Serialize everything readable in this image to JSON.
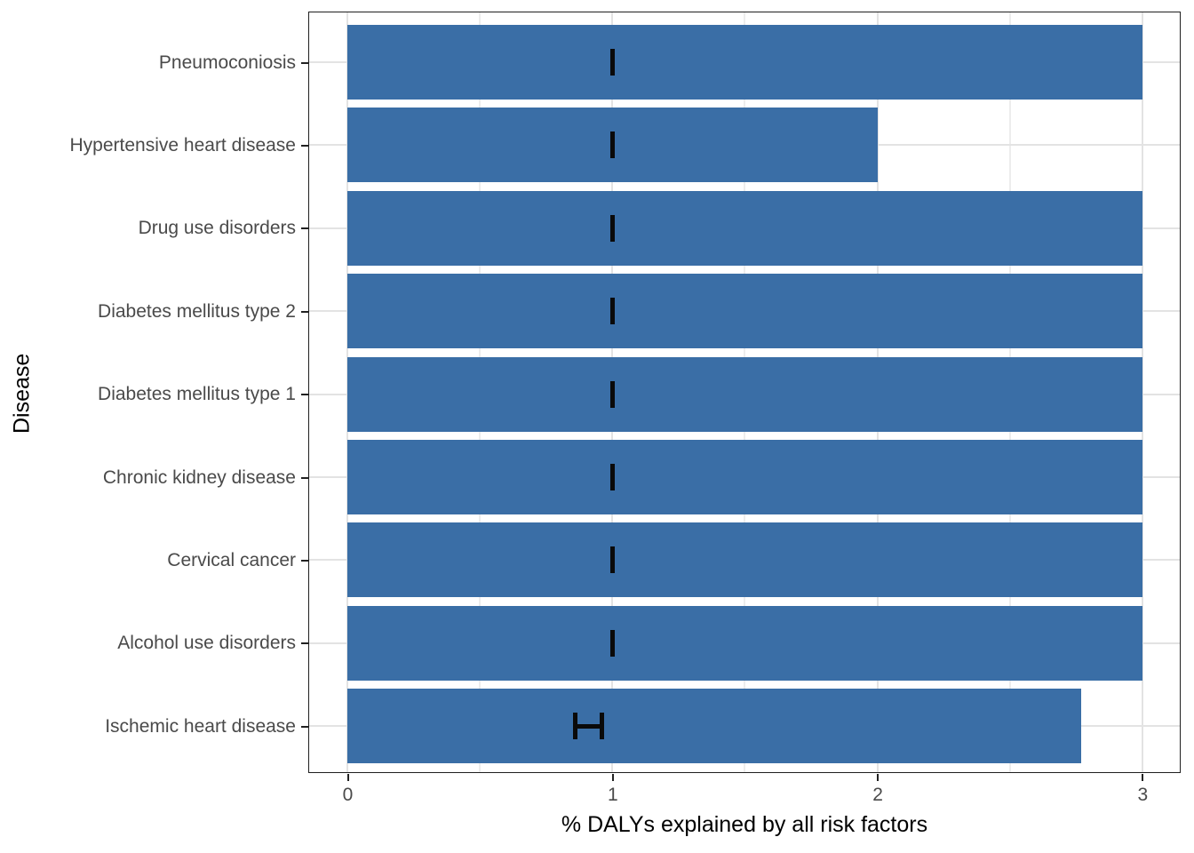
{
  "figure": {
    "x_axis_title": "% DALYs explained by all risk factors",
    "y_axis_title": "Disease"
  },
  "colors": {
    "bar_fill": "#3A6EA6",
    "error_bar": "#0A0A0A",
    "grid_major": "#E3E3E3",
    "grid_minor": "#EDEDED",
    "panel_border": "#1F1F1F",
    "tick_label": "#4A4A4A",
    "axis_title": "#000000"
  },
  "chart_data": {
    "type": "bar",
    "orientation": "horizontal",
    "title": "",
    "xlabel": "% DALYs explained by all risk factors",
    "ylabel": "Disease",
    "xlim": [
      0,
      3
    ],
    "x_ticks": [
      0,
      1,
      2,
      3
    ],
    "x_minor_ticks": [
      0.5,
      1.5,
      2.5
    ],
    "grid": true,
    "legend": false,
    "categories": [
      "Pneumoconiosis",
      "Hypertensive heart disease",
      "Drug use disorders",
      "Diabetes mellitus type 2",
      "Diabetes mellitus type 1",
      "Chronic kidney disease",
      "Cervical cancer",
      "Alcohol use disorders",
      "Ischemic heart disease"
    ],
    "values": [
      3.0,
      2.0,
      3.0,
      3.0,
      3.0,
      3.0,
      3.0,
      3.0,
      2.77
    ],
    "error_bars": [
      {
        "low": 1.0,
        "high": 1.0
      },
      {
        "low": 1.0,
        "high": 1.0
      },
      {
        "low": 1.0,
        "high": 1.0
      },
      {
        "low": 1.0,
        "high": 1.0
      },
      {
        "low": 1.0,
        "high": 1.0
      },
      {
        "low": 1.0,
        "high": 1.0
      },
      {
        "low": 1.0,
        "high": 1.0
      },
      {
        "low": 1.0,
        "high": 1.0
      },
      {
        "low": 0.86,
        "high": 0.96
      }
    ]
  }
}
